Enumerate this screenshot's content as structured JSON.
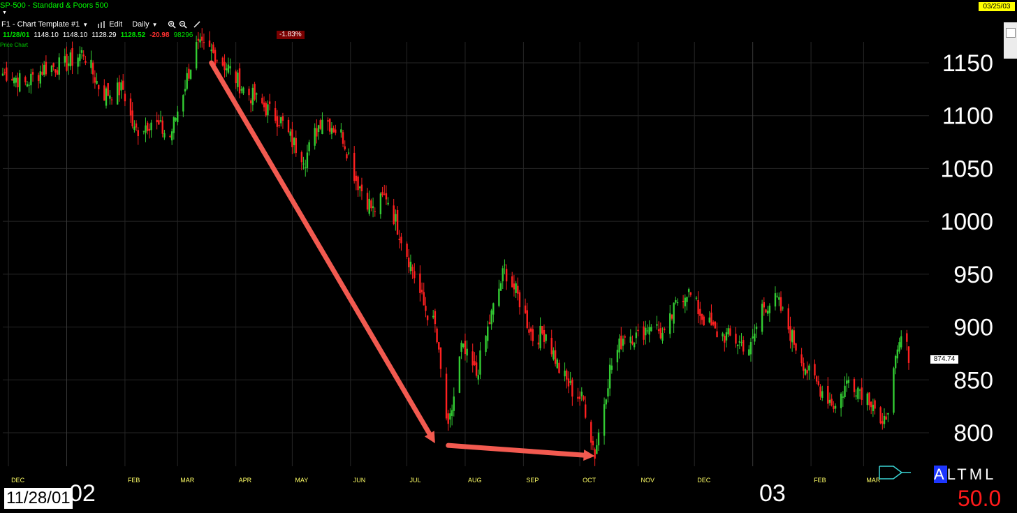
{
  "header": {
    "title": "SP-500 - Standard & Poors 500",
    "date_badge": "03/25/03",
    "template_label": "F1 - Chart Template #1",
    "edit_label": "Edit",
    "interval_label": "Daily",
    "pane_label": "Price Chart"
  },
  "quote": {
    "date": "11/28/01",
    "open": "1148.10",
    "high": "1148.10",
    "low": "1128.29",
    "close": "1128.52",
    "change": "-20.98",
    "volume": "98296",
    "pct_change": "-1.83%"
  },
  "footer": {
    "cursor_date": "11/28/01",
    "year_2002": "02",
    "year_2003": "03",
    "altml": [
      "A",
      "L",
      "T",
      "M",
      "L"
    ],
    "big_value": "50.0"
  },
  "last_price": "874.74",
  "colors": {
    "up": "#33cc33",
    "down": "#ff2020",
    "arrow": "#f25a50",
    "month_label": "#ffff66",
    "grid": "#262626"
  },
  "chart_data": {
    "type": "candlestick",
    "title": "SP-500 - Standard & Poors 500",
    "xlabel": "",
    "ylabel": "",
    "ylim": [
      775,
      1170
    ],
    "y_ticks": [
      800,
      850,
      900,
      950,
      1000,
      1050,
      1100,
      1150
    ],
    "x_range": [
      "2001-11-28",
      "2003-03-25"
    ],
    "x_tick_labels": [
      "DEC",
      "FEB",
      "MAR",
      "APR",
      "MAY",
      "JUN",
      "JUL",
      "AUG",
      "SEP",
      "OCT",
      "NOV",
      "DEC",
      "FEB",
      "MAR"
    ],
    "year_labels": [
      "02",
      "03"
    ],
    "series": [
      {
        "type": "candlestick",
        "points": [
          [
            "2001-12-01",
            1140
          ],
          [
            "2001-12-10",
            1130
          ],
          [
            "2001-12-20",
            1145
          ],
          [
            "2001-12-31",
            1148
          ],
          [
            "2002-01-10",
            1160
          ],
          [
            "2002-01-20",
            1120
          ],
          [
            "2002-01-31",
            1125
          ],
          [
            "2002-02-06",
            1085
          ],
          [
            "2002-02-15",
            1095
          ],
          [
            "2002-02-25",
            1080
          ],
          [
            "2002-03-05",
            1130
          ],
          [
            "2002-03-11",
            1165
          ],
          [
            "2002-03-19",
            1160
          ],
          [
            "2002-03-28",
            1145
          ],
          [
            "2002-04-05",
            1125
          ],
          [
            "2002-04-15",
            1110
          ],
          [
            "2002-04-25",
            1095
          ],
          [
            "2002-05-01",
            1075
          ],
          [
            "2002-05-08",
            1060
          ],
          [
            "2002-05-17",
            1100
          ],
          [
            "2002-05-28",
            1080
          ],
          [
            "2002-06-04",
            1040
          ],
          [
            "2002-06-13",
            1010
          ],
          [
            "2002-06-20",
            1025
          ],
          [
            "2002-06-27",
            990
          ],
          [
            "2002-07-03",
            960
          ],
          [
            "2002-07-10",
            920
          ],
          [
            "2002-07-16",
            900
          ],
          [
            "2002-07-23",
            800
          ],
          [
            "2002-07-30",
            880
          ],
          [
            "2002-08-07",
            855
          ],
          [
            "2002-08-14",
            905
          ],
          [
            "2002-08-22",
            955
          ],
          [
            "2002-08-30",
            925
          ],
          [
            "2002-09-06",
            890
          ],
          [
            "2002-09-13",
            895
          ],
          [
            "2002-09-20",
            860
          ],
          [
            "2002-09-27",
            840
          ],
          [
            "2002-10-03",
            830
          ],
          [
            "2002-10-09",
            780
          ],
          [
            "2002-10-17",
            860
          ],
          [
            "2002-10-25",
            895
          ],
          [
            "2002-11-01",
            890
          ],
          [
            "2002-11-08",
            905
          ],
          [
            "2002-11-15",
            890
          ],
          [
            "2002-11-22",
            925
          ],
          [
            "2002-11-27",
            935
          ],
          [
            "2002-12-05",
            910
          ],
          [
            "2002-12-12",
            895
          ],
          [
            "2002-12-20",
            890
          ],
          [
            "2002-12-31",
            880
          ],
          [
            "2003-01-06",
            920
          ],
          [
            "2003-01-14",
            925
          ],
          [
            "2003-01-22",
            890
          ],
          [
            "2003-01-31",
            855
          ],
          [
            "2003-02-07",
            840
          ],
          [
            "2003-02-14",
            825
          ],
          [
            "2003-02-21",
            850
          ],
          [
            "2003-02-28",
            840
          ],
          [
            "2003-03-06",
            830
          ],
          [
            "2003-03-11",
            800
          ],
          [
            "2003-03-17",
            855
          ],
          [
            "2003-03-21",
            890
          ],
          [
            "2003-03-25",
            874.74
          ]
        ]
      }
    ],
    "annotations": [
      {
        "type": "arrow",
        "from": [
          "2002-03-19",
          1150
        ],
        "to": [
          "2002-07-16",
          790
        ]
      },
      {
        "type": "arrow",
        "from": [
          "2002-07-23",
          788
        ],
        "to": [
          "2002-10-09",
          778
        ]
      }
    ]
  }
}
